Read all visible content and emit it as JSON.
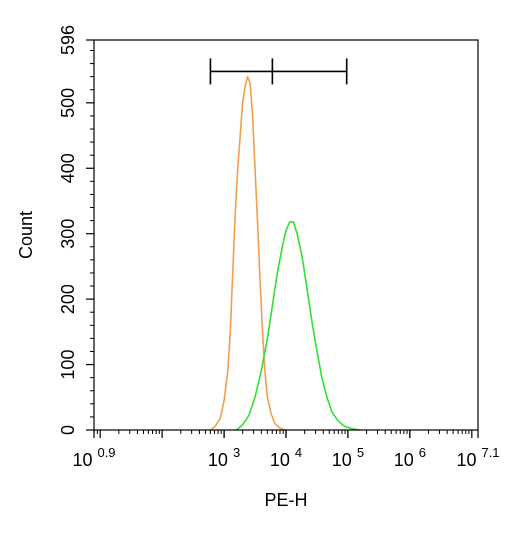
{
  "chart_data": {
    "type": "histogram",
    "xlabel": "PE-H",
    "ylabel": "Count",
    "x_scale": "log10",
    "xlim_log10": [
      0.9,
      7.1
    ],
    "ylim": [
      0,
      596
    ],
    "x_ticks": [
      {
        "base": "10",
        "exp": "0.9",
        "log": 0.9
      },
      {
        "base": "10",
        "exp": "3",
        "log": 3
      },
      {
        "base": "10",
        "exp": "4",
        "log": 4
      },
      {
        "base": "10",
        "exp": "5",
        "log": 5
      },
      {
        "base": "10",
        "exp": "6",
        "log": 6
      },
      {
        "base": "10",
        "exp": "7.1",
        "log": 7.1
      }
    ],
    "y_ticks": [
      "0",
      "100",
      "200",
      "300",
      "400",
      "500",
      "596"
    ],
    "y_tick_values": [
      0,
      100,
      200,
      300,
      400,
      500,
      596
    ],
    "series": [
      {
        "color": "#f0a050",
        "points": [
          [
            2.78,
            0
          ],
          [
            2.86,
            6
          ],
          [
            2.94,
            18
          ],
          [
            3.0,
            45
          ],
          [
            3.06,
            90
          ],
          [
            3.1,
            150
          ],
          [
            3.14,
            240
          ],
          [
            3.18,
            330
          ],
          [
            3.22,
            400
          ],
          [
            3.26,
            450
          ],
          [
            3.3,
            500
          ],
          [
            3.34,
            525
          ],
          [
            3.38,
            540
          ],
          [
            3.42,
            530
          ],
          [
            3.46,
            480
          ],
          [
            3.5,
            400
          ],
          [
            3.54,
            320
          ],
          [
            3.58,
            230
          ],
          [
            3.62,
            150
          ],
          [
            3.66,
            90
          ],
          [
            3.7,
            50
          ],
          [
            3.76,
            25
          ],
          [
            3.82,
            10
          ],
          [
            3.9,
            3
          ],
          [
            3.98,
            0
          ]
        ]
      },
      {
        "color": "#33e033",
        "points": [
          [
            3.2,
            0
          ],
          [
            3.3,
            8
          ],
          [
            3.4,
            22
          ],
          [
            3.5,
            50
          ],
          [
            3.6,
            90
          ],
          [
            3.7,
            140
          ],
          [
            3.78,
            190
          ],
          [
            3.86,
            240
          ],
          [
            3.94,
            280
          ],
          [
            4.0,
            305
          ],
          [
            4.06,
            318
          ],
          [
            4.12,
            318
          ],
          [
            4.18,
            300
          ],
          [
            4.26,
            265
          ],
          [
            4.34,
            215
          ],
          [
            4.42,
            165
          ],
          [
            4.5,
            120
          ],
          [
            4.58,
            80
          ],
          [
            4.66,
            50
          ],
          [
            4.74,
            28
          ],
          [
            4.84,
            14
          ],
          [
            4.94,
            6
          ],
          [
            5.06,
            2
          ],
          [
            5.2,
            0
          ]
        ]
      }
    ],
    "gate": {
      "x_log": [
        2.78,
        3.78,
        4.98
      ],
      "y": 548
    }
  }
}
